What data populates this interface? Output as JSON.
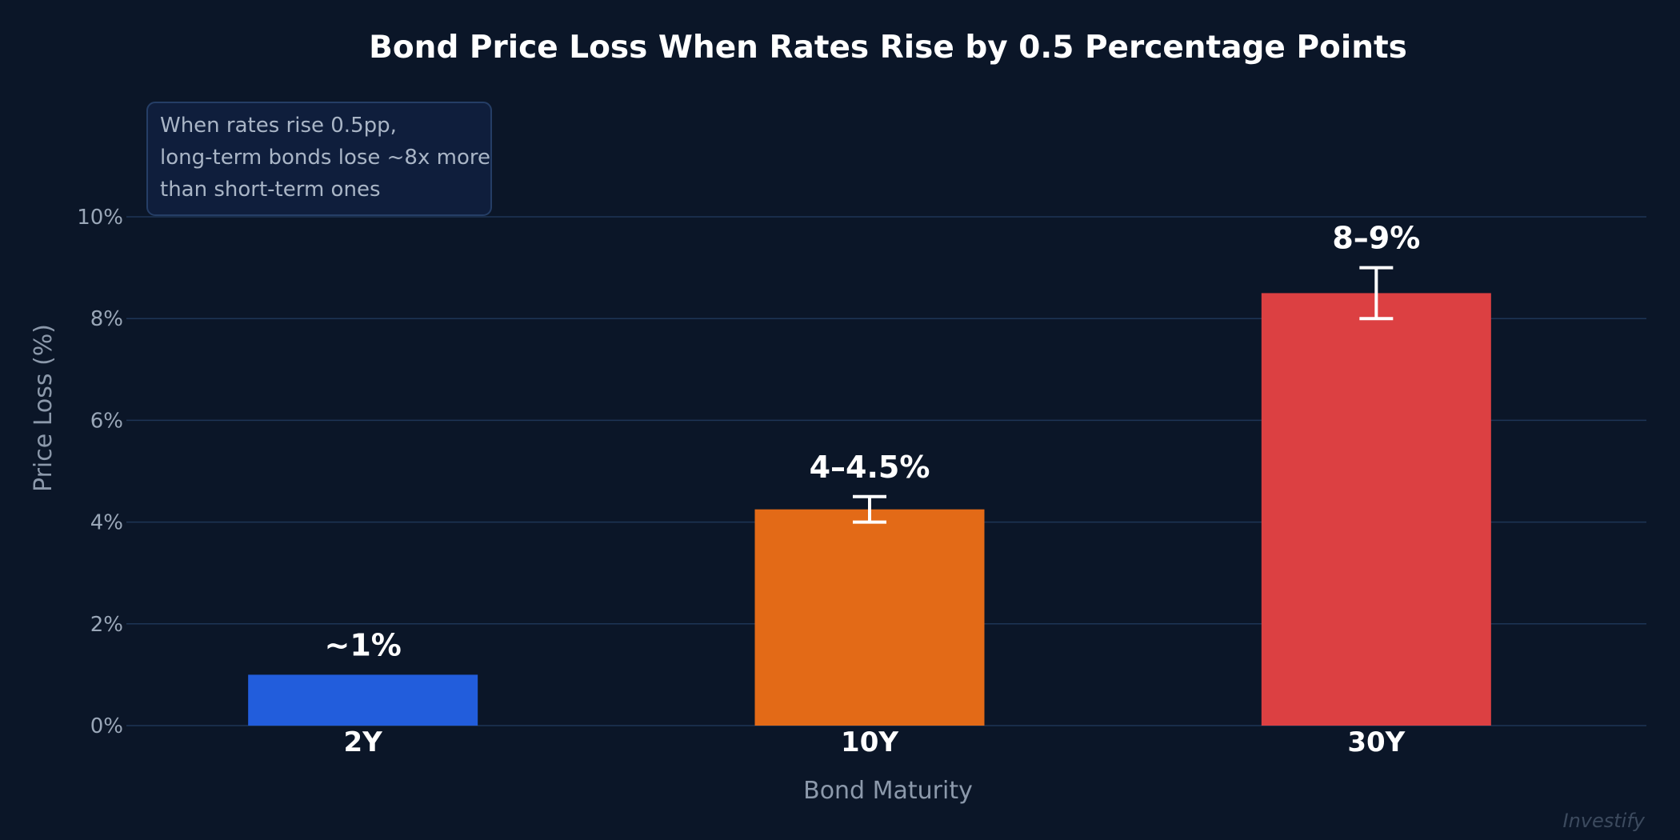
{
  "chart_data": {
    "type": "bar",
    "title": "Bond Price Loss When Rates Rise by 0.5 Percentage Points",
    "xlabel": "Bond Maturity",
    "ylabel": "Price Loss (%)",
    "categories": [
      "2Y",
      "10Y",
      "30Y"
    ],
    "values": [
      1,
      4.25,
      8.5
    ],
    "error_ranges": [
      null,
      [
        4,
        4.5
      ],
      [
        8,
        9
      ]
    ],
    "data_labels": [
      "~1%",
      "4–4.5%",
      "8–9%"
    ],
    "colors": [
      "#225ddc",
      "#e36a17",
      "#dc4042"
    ],
    "ylim": [
      0,
      10
    ],
    "y_ticks": [
      0,
      2,
      4,
      6,
      8,
      10
    ],
    "y_tick_labels": [
      "0%",
      "2%",
      "4%",
      "6%",
      "8%",
      "10%"
    ],
    "grid": true,
    "annotation": {
      "lines": [
        "When rates rise 0.5pp,",
        "long-term bonds lose ~8x more",
        "than short-term ones"
      ]
    }
  },
  "watermark": "Investify",
  "style": {
    "background": "#0b1628",
    "grid_color": "#1e3556",
    "error_bar_color": "#ffffff",
    "annotation_fill": "#0f1e3c",
    "annotation_border": "#253e66"
  }
}
